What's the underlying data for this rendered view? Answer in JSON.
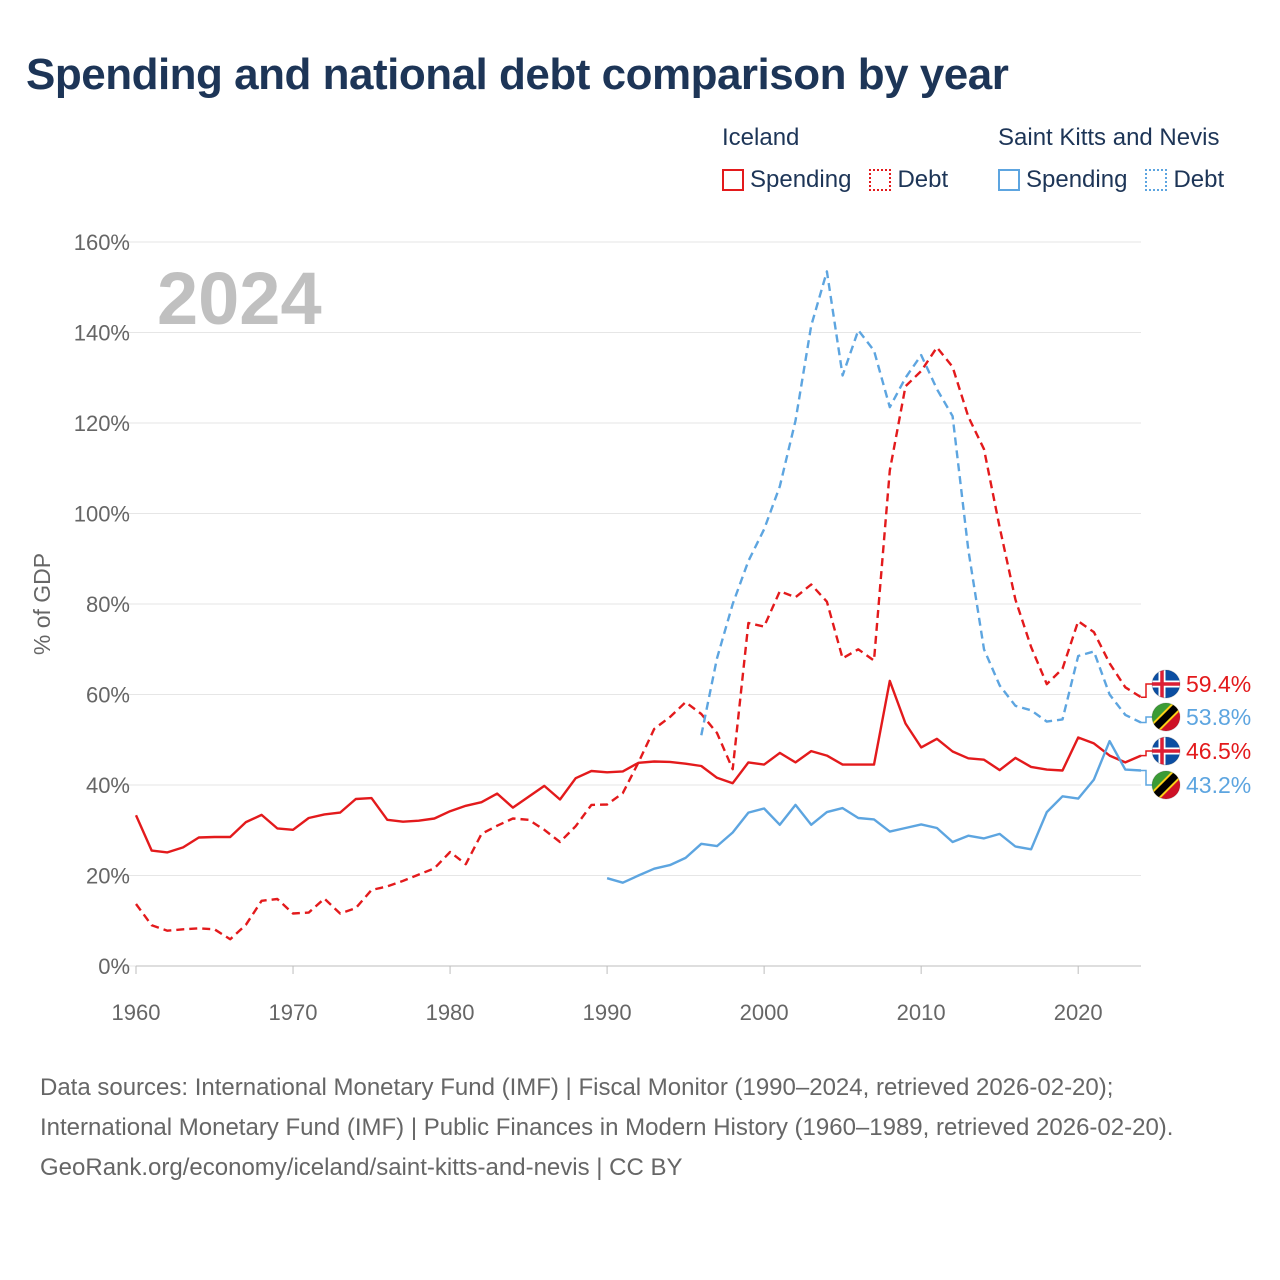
{
  "title": "Spending and national debt comparison by year",
  "legend": {
    "groups": [
      {
        "name": "Iceland",
        "color": "#e31a1c",
        "spending": "Spending",
        "debt": "Debt"
      },
      {
        "name": "Saint Kitts and Nevis",
        "color": "#5da5e0",
        "spending": "Spending",
        "debt": "Debt"
      }
    ]
  },
  "footer": {
    "sources": "Data sources: International Monetary Fund (IMF) | Fiscal Monitor (1990–2024, retrieved 2026-02-20); International Monetary Fund (IMF) | Public Finances in Modern History (1960–1989, retrieved 2026-02-20).",
    "credit": "GeoRank.org/economy/iceland/saint-kitts-and-nevis | CC BY"
  },
  "chart_data": {
    "type": "line",
    "title": "Spending and national debt comparison by year",
    "xlabel": "",
    "ylabel": "% of GDP",
    "year_label": "2024",
    "xlim": [
      1960,
      2024
    ],
    "ylim": [
      0,
      160
    ],
    "xticks": [
      1960,
      1970,
      1980,
      1990,
      2000,
      2010,
      2020
    ],
    "yticks": [
      0,
      20,
      40,
      60,
      80,
      100,
      120,
      140,
      160
    ],
    "ytick_labels": [
      "0%",
      "20%",
      "40%",
      "60%",
      "80%",
      "100%",
      "120%",
      "140%",
      "160%"
    ],
    "grid": true,
    "series": [
      {
        "name": "Iceland Spending",
        "country": "Iceland",
        "kind": "spending",
        "color": "#e31a1c",
        "dash": false,
        "start": 1960,
        "values": [
          33.3,
          25.5,
          25.1,
          26.2,
          28.4,
          28.5,
          28.5,
          31.8,
          33.4,
          30.4,
          30.1,
          32.7,
          33.5,
          33.9,
          36.9,
          37.1,
          32.3,
          31.9,
          32.1,
          32.6,
          34.2,
          35.4,
          36.2,
          38.1,
          35.0,
          37.4,
          39.8,
          36.8,
          41.5,
          43.1,
          42.8,
          43.0,
          44.9,
          45.2,
          45.1,
          44.7,
          44.2,
          41.6,
          40.4,
          45.0,
          44.5,
          47.1,
          45.0,
          47.5,
          46.5,
          44.5,
          44.5,
          44.5,
          63.0,
          53.6,
          48.3,
          50.2,
          47.4,
          45.9,
          45.6,
          43.3,
          46.0,
          44.0,
          43.4,
          43.2,
          50.5,
          49.2,
          46.5,
          45.0,
          46.5
        ],
        "end_label": "46.5%"
      },
      {
        "name": "Iceland Debt",
        "country": "Iceland",
        "kind": "debt",
        "color": "#e31a1c",
        "dash": true,
        "start": 1960,
        "values": [
          13.7,
          9.0,
          7.8,
          8.1,
          8.3,
          8.1,
          5.9,
          9.1,
          14.4,
          14.8,
          11.6,
          11.8,
          14.9,
          11.6,
          12.8,
          16.8,
          17.6,
          18.8,
          20.2,
          21.6,
          25.2,
          22.5,
          29.2,
          31.0,
          32.6,
          32.3,
          30.1,
          27.4,
          30.9,
          35.6,
          35.7,
          38.2,
          45.0,
          52.4,
          55.0,
          58.3,
          55.7,
          51.5,
          43.5,
          75.8,
          75.0,
          82.8,
          81.5,
          84.3,
          80.5,
          68.0,
          70.0,
          67.5,
          109.5,
          128.1,
          131.5,
          136.7,
          132.4,
          121.4,
          114.2,
          96.9,
          81.0,
          70.5,
          62.3,
          65.7,
          76.2,
          73.8,
          66.9,
          61.6,
          59.4
        ],
        "end_label": "59.4%"
      },
      {
        "name": "Saint Kitts and Nevis Spending",
        "country": "Saint Kitts and Nevis",
        "kind": "spending",
        "color": "#5da5e0",
        "dash": false,
        "start": 1990,
        "values": [
          19.4,
          18.4,
          20.0,
          21.5,
          22.3,
          23.9,
          27.0,
          26.5,
          29.5,
          33.9,
          34.8,
          31.2,
          35.6,
          31.2,
          34.0,
          34.9,
          32.7,
          32.4,
          29.7,
          30.5,
          31.3,
          30.5,
          27.4,
          28.8,
          28.2,
          29.2,
          26.4,
          25.8,
          34.0,
          37.5,
          37.0,
          41.2,
          49.7,
          43.4,
          43.2
        ],
        "end_label": "43.2%"
      },
      {
        "name": "Saint Kitts and Nevis Debt",
        "country": "Saint Kitts and Nevis",
        "kind": "debt",
        "color": "#5da5e0",
        "dash": true,
        "start": 1996,
        "values": [
          51.0,
          68.0,
          80.0,
          89.5,
          96.5,
          106.0,
          120.5,
          141.5,
          153.5,
          130.5,
          140.5,
          136.0,
          123.5,
          130.0,
          135.0,
          127.5,
          121.5,
          92.0,
          70.0,
          62.0,
          57.5,
          56.5,
          54.0,
          54.5,
          68.5,
          69.5,
          60.0,
          55.5,
          53.8
        ],
        "end_label": "53.8%"
      }
    ]
  }
}
